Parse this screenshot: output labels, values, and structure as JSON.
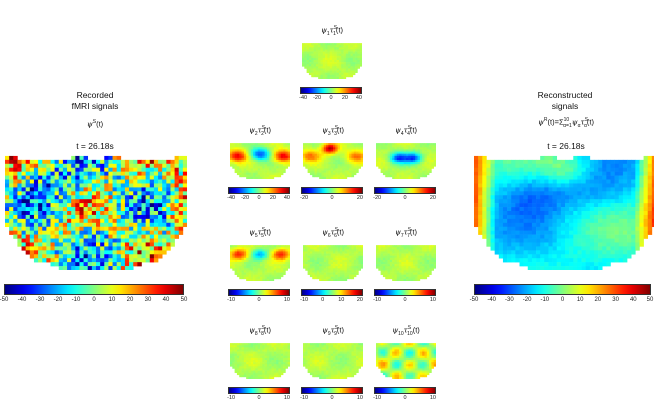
{
  "left_panel": {
    "title_line1": "Recorded",
    "title_line2": "fMRI signals",
    "equation": "ψS(t)",
    "time_label": "t = 26.18s",
    "colorbar_ticks": [
      "-50",
      "-40",
      "-30",
      "-20",
      "-10",
      "0",
      "10",
      "20",
      "30",
      "40",
      "50"
    ]
  },
  "right_panel": {
    "title_line1": "Reconstructed",
    "title_line2": "signals",
    "equation": "ψR(t)=Σ10α=1ψατSα(t)",
    "time_label": "t = 26.18s",
    "colorbar_ticks": [
      "-50",
      "-40",
      "-30",
      "-20",
      "-10",
      "0",
      "10",
      "20",
      "30",
      "40",
      "50"
    ]
  },
  "modes": [
    {
      "index": "1",
      "label": "ψ1τS1(t)",
      "ticks": [
        "-40",
        "-20",
        "0",
        "20",
        "40"
      ]
    },
    {
      "index": "2",
      "label": "ψ2τS2(t)",
      "ticks": [
        "-40",
        "-20",
        "0",
        "20",
        "40"
      ]
    },
    {
      "index": "3",
      "label": "ψ3τS3(t)",
      "ticks": [
        "-20",
        "0",
        "20"
      ]
    },
    {
      "index": "4",
      "label": "ψ4τS4(t)",
      "ticks": [
        "-20",
        "0",
        "20"
      ]
    },
    {
      "index": "5",
      "label": "ψ5τS5(t)",
      "ticks": [
        "-10",
        "0",
        "10"
      ]
    },
    {
      "index": "6",
      "label": "ψ6τS6(t)",
      "ticks": [
        "-10",
        "0",
        "10",
        "20"
      ]
    },
    {
      "index": "7",
      "label": "ψ7τS7(t)",
      "ticks": [
        "-10",
        "0",
        "10"
      ]
    },
    {
      "index": "8",
      "label": "ψ8τS8(t)",
      "ticks": [
        "-10",
        "0",
        "10"
      ]
    },
    {
      "index": "9",
      "label": "ψ9τS9(t)",
      "ticks": [
        "-10",
        "0",
        "10"
      ]
    },
    {
      "index": "10",
      "label": "ψ10τS10(t)",
      "ticks": [
        "-10",
        "0",
        "10"
      ]
    }
  ],
  "colors": {
    "jet_low": "#00008f",
    "jet_mid": "#7fff7f",
    "jet_high": "#7f0000",
    "background": "#ffffff"
  }
}
